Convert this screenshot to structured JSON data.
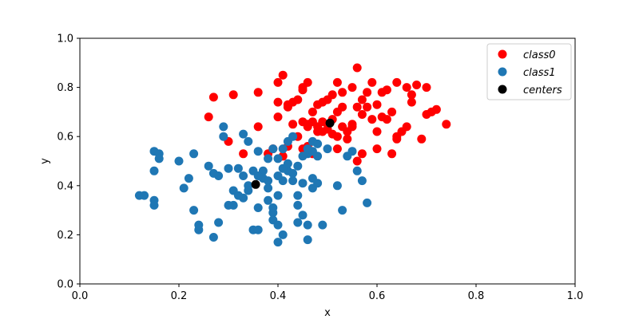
{
  "chart_data": {
    "type": "scatter",
    "title": "",
    "xlabel": "x",
    "ylabel": "y",
    "xlim": [
      0.0,
      1.0
    ],
    "ylim": [
      0.0,
      1.0
    ],
    "xticks": [
      "0.0",
      "0.2",
      "0.4",
      "0.6",
      "0.8",
      "1.0"
    ],
    "yticks": [
      "0.0",
      "0.2",
      "0.4",
      "0.6",
      "0.8",
      "1.0"
    ],
    "grid": false,
    "legend_position": "top-right",
    "series": [
      {
        "name": "class0",
        "label": "$class0$",
        "color": "#ff0000",
        "points": [
          [
            0.27,
            0.76
          ],
          [
            0.31,
            0.77
          ],
          [
            0.36,
            0.78
          ],
          [
            0.4,
            0.82
          ],
          [
            0.41,
            0.85
          ],
          [
            0.45,
            0.8
          ],
          [
            0.46,
            0.82
          ],
          [
            0.52,
            0.82
          ],
          [
            0.53,
            0.78
          ],
          [
            0.55,
            0.8
          ],
          [
            0.56,
            0.88
          ],
          [
            0.57,
            0.75
          ],
          [
            0.58,
            0.78
          ],
          [
            0.59,
            0.82
          ],
          [
            0.61,
            0.78
          ],
          [
            0.62,
            0.79
          ],
          [
            0.64,
            0.82
          ],
          [
            0.66,
            0.8
          ],
          [
            0.67,
            0.77
          ],
          [
            0.68,
            0.81
          ],
          [
            0.7,
            0.8
          ],
          [
            0.26,
            0.68
          ],
          [
            0.3,
            0.58
          ],
          [
            0.33,
            0.53
          ],
          [
            0.36,
            0.64
          ],
          [
            0.39,
            0.55
          ],
          [
            0.4,
            0.68
          ],
          [
            0.4,
            0.74
          ],
          [
            0.42,
            0.73
          ],
          [
            0.42,
            0.72
          ],
          [
            0.43,
            0.74
          ],
          [
            0.44,
            0.75
          ],
          [
            0.45,
            0.79
          ],
          [
            0.45,
            0.66
          ],
          [
            0.46,
            0.65
          ],
          [
            0.47,
            0.7
          ],
          [
            0.48,
            0.73
          ],
          [
            0.49,
            0.74
          ],
          [
            0.5,
            0.75
          ],
          [
            0.51,
            0.77
          ],
          [
            0.52,
            0.7
          ],
          [
            0.53,
            0.72
          ],
          [
            0.54,
            0.62
          ],
          [
            0.55,
            0.65
          ],
          [
            0.56,
            0.72
          ],
          [
            0.57,
            0.69
          ],
          [
            0.58,
            0.72
          ],
          [
            0.59,
            0.67
          ],
          [
            0.6,
            0.73
          ],
          [
            0.61,
            0.68
          ],
          [
            0.62,
            0.67
          ],
          [
            0.63,
            0.7
          ],
          [
            0.64,
            0.6
          ],
          [
            0.65,
            0.62
          ],
          [
            0.66,
            0.64
          ],
          [
            0.67,
            0.74
          ],
          [
            0.7,
            0.69
          ],
          [
            0.71,
            0.7
          ],
          [
            0.72,
            0.71
          ],
          [
            0.74,
            0.65
          ],
          [
            0.38,
            0.53
          ],
          [
            0.41,
            0.52
          ],
          [
            0.42,
            0.56
          ],
          [
            0.43,
            0.65
          ],
          [
            0.44,
            0.6
          ],
          [
            0.45,
            0.55
          ],
          [
            0.46,
            0.56
          ],
          [
            0.47,
            0.53
          ],
          [
            0.48,
            0.64
          ],
          [
            0.49,
            0.66
          ],
          [
            0.5,
            0.63
          ],
          [
            0.51,
            0.67
          ],
          [
            0.52,
            0.6
          ],
          [
            0.52,
            0.55
          ],
          [
            0.53,
            0.64
          ],
          [
            0.54,
            0.59
          ],
          [
            0.55,
            0.64
          ],
          [
            0.56,
            0.5
          ],
          [
            0.57,
            0.53
          ],
          [
            0.6,
            0.62
          ],
          [
            0.6,
            0.55
          ],
          [
            0.63,
            0.53
          ],
          [
            0.64,
            0.59
          ],
          [
            0.69,
            0.59
          ],
          [
            0.49,
            0.62
          ],
          [
            0.5,
            0.65
          ],
          [
            0.51,
            0.61
          ],
          [
            0.47,
            0.66
          ],
          [
            0.48,
            0.62
          ],
          [
            0.46,
            0.64
          ]
        ]
      },
      {
        "name": "class1",
        "label": "$class1$",
        "color": "#1f77b4",
        "points": [
          [
            0.12,
            0.36
          ],
          [
            0.13,
            0.36
          ],
          [
            0.15,
            0.34
          ],
          [
            0.15,
            0.32
          ],
          [
            0.15,
            0.46
          ],
          [
            0.15,
            0.54
          ],
          [
            0.16,
            0.53
          ],
          [
            0.16,
            0.51
          ],
          [
            0.2,
            0.5
          ],
          [
            0.21,
            0.39
          ],
          [
            0.22,
            0.43
          ],
          [
            0.23,
            0.3
          ],
          [
            0.23,
            0.53
          ],
          [
            0.24,
            0.22
          ],
          [
            0.24,
            0.24
          ],
          [
            0.26,
            0.48
          ],
          [
            0.27,
            0.45
          ],
          [
            0.28,
            0.44
          ],
          [
            0.27,
            0.19
          ],
          [
            0.28,
            0.25
          ],
          [
            0.29,
            0.64
          ],
          [
            0.29,
            0.6
          ],
          [
            0.3,
            0.47
          ],
          [
            0.3,
            0.32
          ],
          [
            0.31,
            0.38
          ],
          [
            0.32,
            0.47
          ],
          [
            0.33,
            0.61
          ],
          [
            0.34,
            0.58
          ],
          [
            0.33,
            0.44
          ],
          [
            0.34,
            0.4
          ],
          [
            0.35,
            0.22
          ],
          [
            0.36,
            0.22
          ],
          [
            0.36,
            0.31
          ],
          [
            0.37,
            0.43
          ],
          [
            0.38,
            0.42
          ],
          [
            0.38,
            0.39
          ],
          [
            0.38,
            0.34
          ],
          [
            0.39,
            0.29
          ],
          [
            0.39,
            0.26
          ],
          [
            0.4,
            0.17
          ],
          [
            0.4,
            0.24
          ],
          [
            0.41,
            0.2
          ],
          [
            0.4,
            0.36
          ],
          [
            0.41,
            0.42
          ],
          [
            0.42,
            0.46
          ],
          [
            0.43,
            0.42
          ],
          [
            0.44,
            0.36
          ],
          [
            0.44,
            0.32
          ],
          [
            0.45,
            0.28
          ],
          [
            0.46,
            0.24
          ],
          [
            0.46,
            0.18
          ],
          [
            0.47,
            0.39
          ],
          [
            0.48,
            0.41
          ],
          [
            0.46,
            0.53
          ],
          [
            0.47,
            0.54
          ],
          [
            0.48,
            0.52
          ],
          [
            0.5,
            0.55
          ],
          [
            0.52,
            0.4
          ],
          [
            0.53,
            0.3
          ],
          [
            0.54,
            0.52
          ],
          [
            0.56,
            0.46
          ],
          [
            0.57,
            0.42
          ],
          [
            0.58,
            0.33
          ],
          [
            0.55,
            0.54
          ],
          [
            0.36,
            0.54
          ],
          [
            0.38,
            0.51
          ],
          [
            0.39,
            0.55
          ],
          [
            0.4,
            0.51
          ],
          [
            0.41,
            0.55
          ],
          [
            0.42,
            0.58
          ],
          [
            0.43,
            0.6
          ],
          [
            0.44,
            0.48
          ],
          [
            0.45,
            0.52
          ],
          [
            0.46,
            0.55
          ],
          [
            0.47,
            0.58
          ],
          [
            0.48,
            0.57
          ],
          [
            0.4,
            0.44
          ],
          [
            0.41,
            0.47
          ],
          [
            0.42,
            0.49
          ],
          [
            0.43,
            0.45
          ],
          [
            0.37,
            0.46
          ],
          [
            0.36,
            0.44
          ],
          [
            0.35,
            0.46
          ],
          [
            0.34,
            0.38
          ],
          [
            0.39,
            0.31
          ],
          [
            0.44,
            0.25
          ],
          [
            0.47,
            0.43
          ],
          [
            0.33,
            0.35
          ],
          [
            0.32,
            0.36
          ],
          [
            0.31,
            0.32
          ],
          [
            0.49,
            0.24
          ],
          [
            0.45,
            0.41
          ]
        ]
      },
      {
        "name": "centers",
        "label": "$centers$",
        "color": "#000000",
        "points": [
          [
            0.505,
            0.655
          ],
          [
            0.355,
            0.405
          ]
        ]
      }
    ]
  }
}
